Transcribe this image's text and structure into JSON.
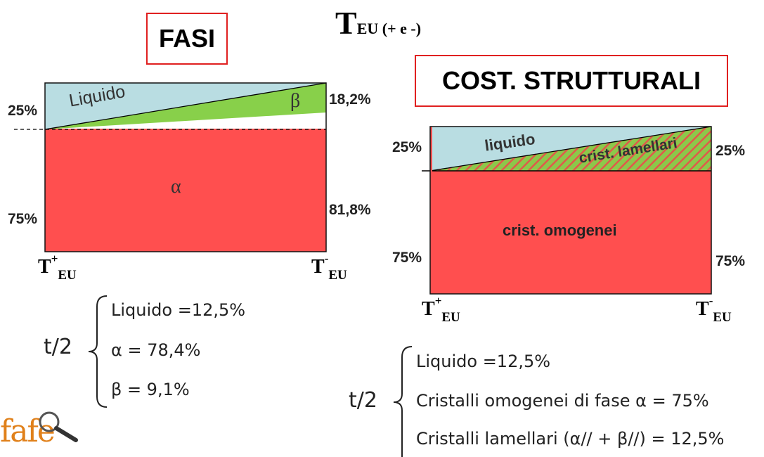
{
  "header": {
    "temp_main": "T",
    "temp_sub": "EU (+ e -)"
  },
  "left": {
    "title": "FASI",
    "diagram": {
      "liquid_label": "Liquido",
      "beta_label": "β",
      "alpha_label": "α",
      "pct_left_top": "25%",
      "pct_left_bottom": "75%",
      "pct_right_top": "18,2%",
      "pct_right_bottom": "81,8%",
      "t_left_main": "T",
      "t_left_sup": "+",
      "t_left_sub": "EU",
      "t_right_main": "T",
      "t_right_sup": "-",
      "t_right_sub": "EU"
    },
    "summary": {
      "t2": "t/2",
      "items": [
        "Liquido =12,5%",
        "α = 78,4%",
        "β = 9,1%"
      ]
    }
  },
  "right": {
    "title": "COST. STRUTTURALI",
    "diagram": {
      "liquid_label": "liquido",
      "lamellar_label": "crist. lamellari",
      "homog_label": "crist. omogenei",
      "pct_left_top": "25%",
      "pct_left_bottom": "75%",
      "pct_right_top": "25%",
      "pct_right_bottom": "75%",
      "t_left_main": "T",
      "t_left_sup": "+",
      "t_left_sub": "EU",
      "t_right_main": "T",
      "t_right_sup": "-",
      "t_right_sub": "EU"
    },
    "summary": {
      "t2": "t/2",
      "items": [
        "Liquido =12,5%",
        "Cristalli omogenei di fase α = 75%",
        "Cristalli lamellari (α// + β//) = 12,5%"
      ]
    }
  },
  "logo": {
    "text": "fafe"
  },
  "colors": {
    "liquid": "#b9dde2",
    "beta": "#88d04a",
    "alpha": "#ff4f4f",
    "title_border": "#e02020"
  }
}
